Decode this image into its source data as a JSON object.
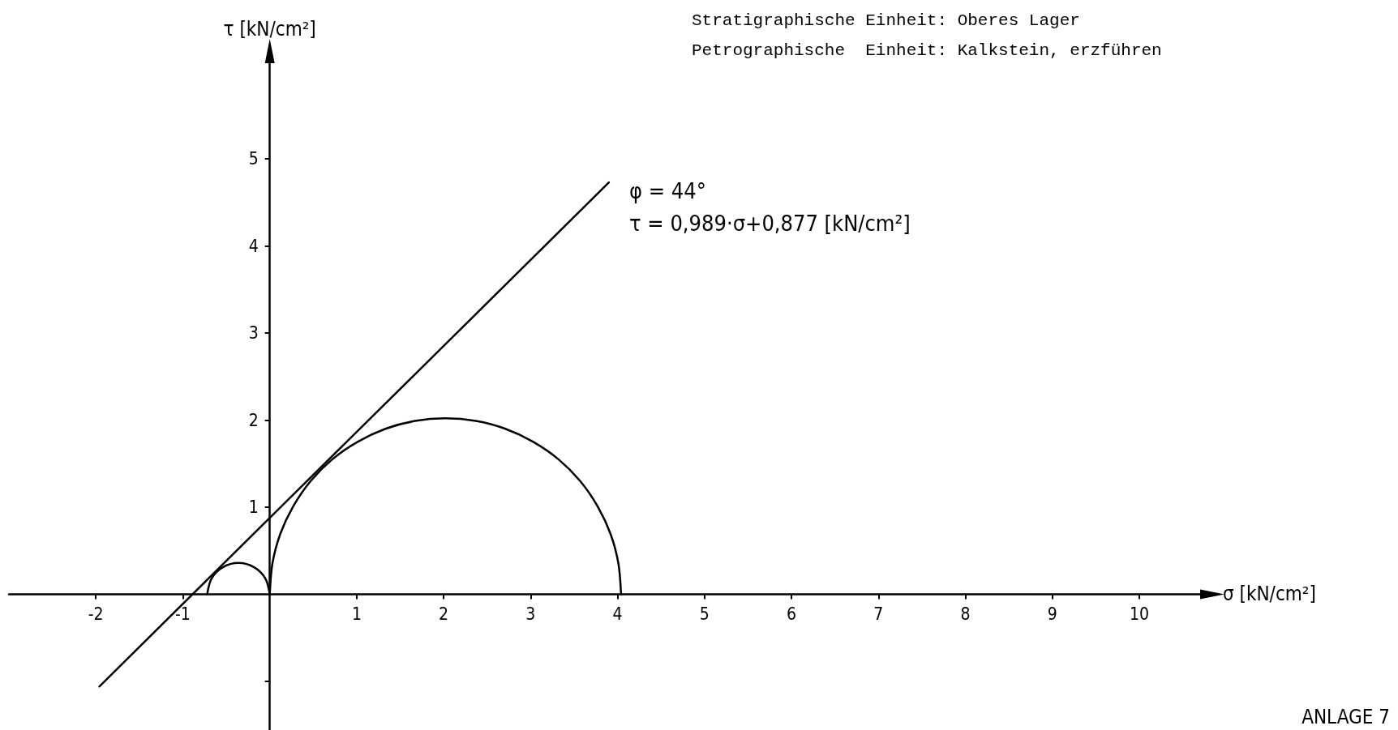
{
  "chart_data": {
    "type": "line",
    "title": "Stratigraphische Einheit: Oberes Lager",
    "subtitle": "Petrographische  Einheit: Kalkstein, erzführen",
    "xlabel": "σ [kN/cm²]",
    "ylabel": "τ [kN/cm²]",
    "annotations": [
      "φ = 44°",
      "τ = 0,989·σ+0,877 [kN/cm²]",
      "ANLAGE 7"
    ],
    "xlim": [
      -3,
      10.7
    ],
    "ylim": [
      -1.56,
      6.1
    ],
    "xticks": [
      -2,
      -1,
      1,
      2,
      3,
      4,
      5,
      6,
      7,
      8,
      9,
      10
    ],
    "yticks": [
      {
        "value": -1,
        "label": null
      },
      1,
      2,
      3,
      4,
      5
    ],
    "marker": "none",
    "line_style": "solid",
    "series": [
      {
        "color": "#000000",
        "x": [
          -1.96,
          3.9
        ],
        "values": [
          -1.06,
          4.73
        ]
      },
      {
        "color": "#000000",
        "x": [
          4.04,
          4.01,
          3.92,
          3.77,
          3.57,
          3.32,
          3.03,
          2.71,
          2.37,
          2.02,
          1.67,
          1.33,
          1.01,
          0.72,
          0.47,
          0.27,
          0.12,
          0.03,
          0
        ],
        "values": [
          0,
          0.35,
          0.69,
          1.01,
          1.3,
          1.55,
          1.75,
          1.9,
          1.99,
          2.02,
          1.99,
          1.9,
          1.75,
          1.55,
          1.3,
          1.01,
          0.69,
          0.35,
          0
        ]
      },
      {
        "color": "#000000",
        "x": [
          0,
          -0.05,
          -0.18,
          -0.36,
          -0.54,
          -0.67,
          -0.72
        ],
        "values": [
          0,
          0.18,
          0.31,
          0.36,
          0.31,
          0.18,
          0
        ]
      }
    ]
  }
}
